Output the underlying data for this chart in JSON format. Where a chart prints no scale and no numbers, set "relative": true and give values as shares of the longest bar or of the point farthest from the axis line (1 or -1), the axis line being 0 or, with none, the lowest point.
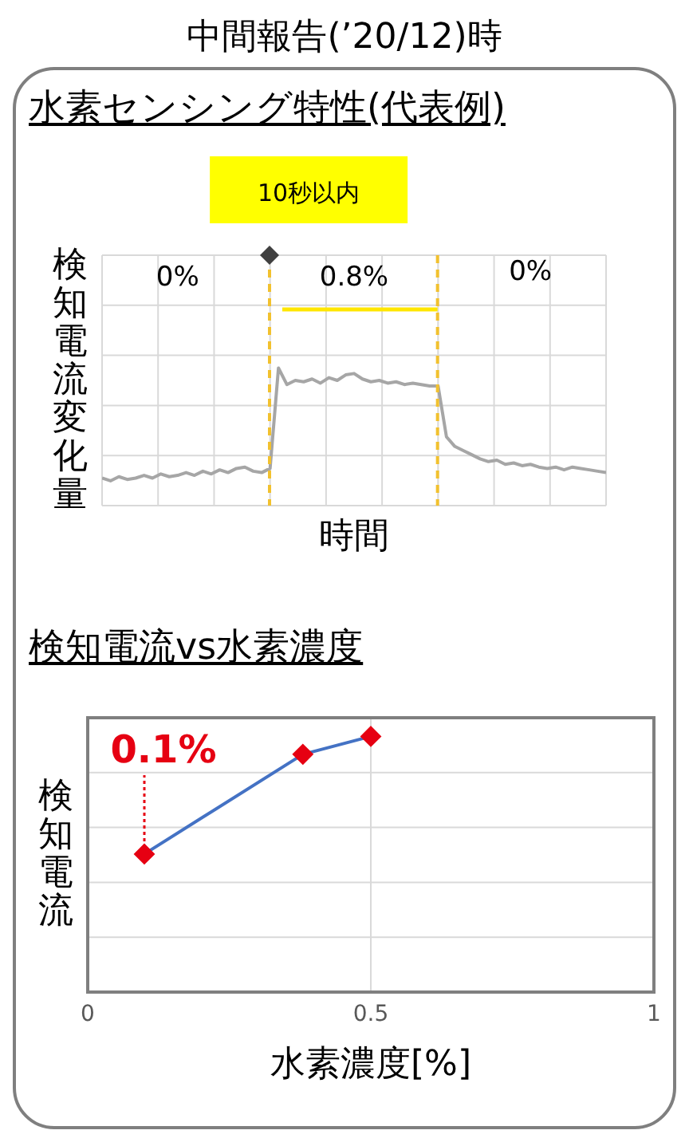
{
  "chart_data": [
    {
      "type": "line",
      "title": "中間報告(’20/12)時",
      "subtitle": "水素センシング特性(代表例)",
      "xlabel": "時間",
      "ylabel": "検知電流変化量",
      "relative": true,
      "tick_labels": false,
      "grid": true,
      "marker": "none",
      "line_style": "solid",
      "categories": [
        null,
        null,
        null,
        null,
        null,
        null,
        null,
        null,
        null,
        null,
        null,
        null,
        null,
        null,
        null,
        null,
        null,
        null,
        null,
        null,
        null,
        null,
        null,
        null,
        null,
        null,
        null,
        null,
        null,
        null,
        null,
        null,
        null,
        null,
        null,
        null,
        null,
        null,
        null,
        null,
        null,
        null,
        null,
        null,
        null,
        null,
        null,
        null,
        null,
        null,
        null,
        null,
        null,
        null,
        null,
        null,
        null,
        null,
        null,
        null,
        null
      ],
      "series": [
        {
          "color": "#a6a6a6",
          "values": [
            0.2,
            0.18,
            0.21,
            0.19,
            0.2,
            0.22,
            0.2,
            0.23,
            0.21,
            0.22,
            0.24,
            0.22,
            0.25,
            0.23,
            0.26,
            0.24,
            0.27,
            0.28,
            0.25,
            0.24,
            0.27,
            1.0,
            0.88,
            0.91,
            0.9,
            0.92,
            0.89,
            0.93,
            0.91,
            0.95,
            0.96,
            0.92,
            0.9,
            0.91,
            0.89,
            0.9,
            0.88,
            0.89,
            0.88,
            0.87,
            0.87,
            0.5,
            0.43,
            0.4,
            0.37,
            0.34,
            0.32,
            0.33,
            0.3,
            0.31,
            0.29,
            0.3,
            0.28,
            0.27,
            0.28,
            0.26,
            0.28,
            0.27,
            0.26,
            0.25,
            0.24
          ]
        }
      ],
      "annotations": [
        "10秒以内",
        "0%",
        "0.8%",
        "0%"
      ]
    },
    {
      "type": "line",
      "title": "検知電流vs水素濃度",
      "xlabel": "水素濃度[%]",
      "ylabel": "検知電流",
      "relative": true,
      "tick_labels": "x",
      "grid": true,
      "marker": "diamond",
      "line_style": "solid",
      "x": [
        0.1,
        0.38,
        0.5
      ],
      "xlim": [
        0,
        1
      ],
      "xticks": [
        0,
        0.5,
        1
      ],
      "series": [
        {
          "color": "#4472c4",
          "colors": [
            "#e60012",
            "#e60012",
            "#e60012"
          ],
          "values": [
            0.54,
            0.93,
            1
          ]
        }
      ],
      "annotations": [
        {
          "text": "0.1%",
          "x": 0.1,
          "y": 0.54
        }
      ]
    }
  ]
}
